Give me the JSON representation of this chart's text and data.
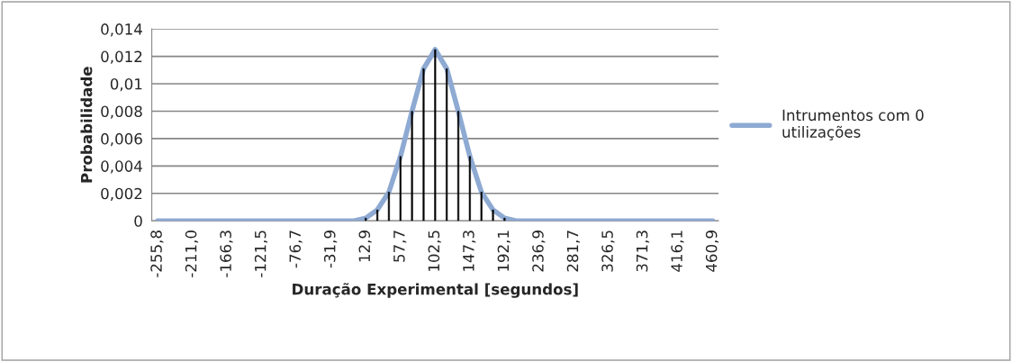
{
  "chart_data": {
    "type": "line",
    "xlabel": "Duração Experimental [segundos]",
    "ylabel": "Probabilidade",
    "categories": [
      "-255,8",
      null,
      null,
      "-211,0",
      null,
      null,
      "-166,3",
      null,
      null,
      "-121,5",
      null,
      null,
      "-76,7",
      null,
      null,
      "-31,9",
      null,
      null,
      "12,9",
      null,
      null,
      "57,7",
      null,
      null,
      "102,5",
      null,
      null,
      "147,3",
      null,
      null,
      "192,1",
      null,
      null,
      "236,9",
      null,
      null,
      "281,7",
      null,
      null,
      "326,5",
      null,
      null,
      "371,3",
      null,
      null,
      "416,1",
      null,
      null,
      "460,9"
    ],
    "series": [
      {
        "name": "Intrumentos com 0 utilizações",
        "color": "#8eaad3",
        "values": [
          0,
          0,
          0,
          0,
          0,
          0,
          0,
          0,
          0,
          0,
          0,
          0,
          0,
          0,
          0,
          0,
          0,
          0,
          0.0002,
          0.0008,
          0.0021,
          0.0047,
          0.008,
          0.0111,
          0.0125,
          0.0111,
          0.008,
          0.0047,
          0.0021,
          0.0008,
          0.0002,
          0,
          0,
          0,
          0,
          0,
          0,
          0,
          0,
          0,
          0,
          0,
          0,
          0,
          0,
          0,
          0,
          0,
          0
        ]
      },
      {
        "type": "bar",
        "color": "#000000",
        "values": [
          null,
          null,
          null,
          null,
          null,
          null,
          null,
          null,
          null,
          null,
          null,
          null,
          null,
          null,
          null,
          null,
          null,
          null,
          0.0002,
          0.0008,
          0.0021,
          0.0047,
          0.008,
          0.0111,
          0.0125,
          0.0111,
          0.008,
          0.0047,
          0.0021,
          0.0008,
          0.0002,
          null,
          null,
          null,
          null,
          null,
          null,
          null,
          null,
          null,
          null,
          null,
          null,
          null,
          null,
          null,
          null,
          null,
          null
        ]
      }
    ],
    "ylim": [
      0,
      0.014
    ],
    "yticks": [
      {
        "value": 0,
        "label": "0"
      },
      {
        "value": 0.002,
        "label": "0,002"
      },
      {
        "value": 0.004,
        "label": "0,004"
      },
      {
        "value": 0.006,
        "label": "0,006"
      },
      {
        "value": 0.008,
        "label": "0,008"
      },
      {
        "value": 0.01,
        "label": "0,01"
      },
      {
        "value": 0.012,
        "label": "0,012"
      },
      {
        "value": 0.014,
        "label": "0,014"
      }
    ],
    "grid": "y",
    "legend": "right"
  }
}
